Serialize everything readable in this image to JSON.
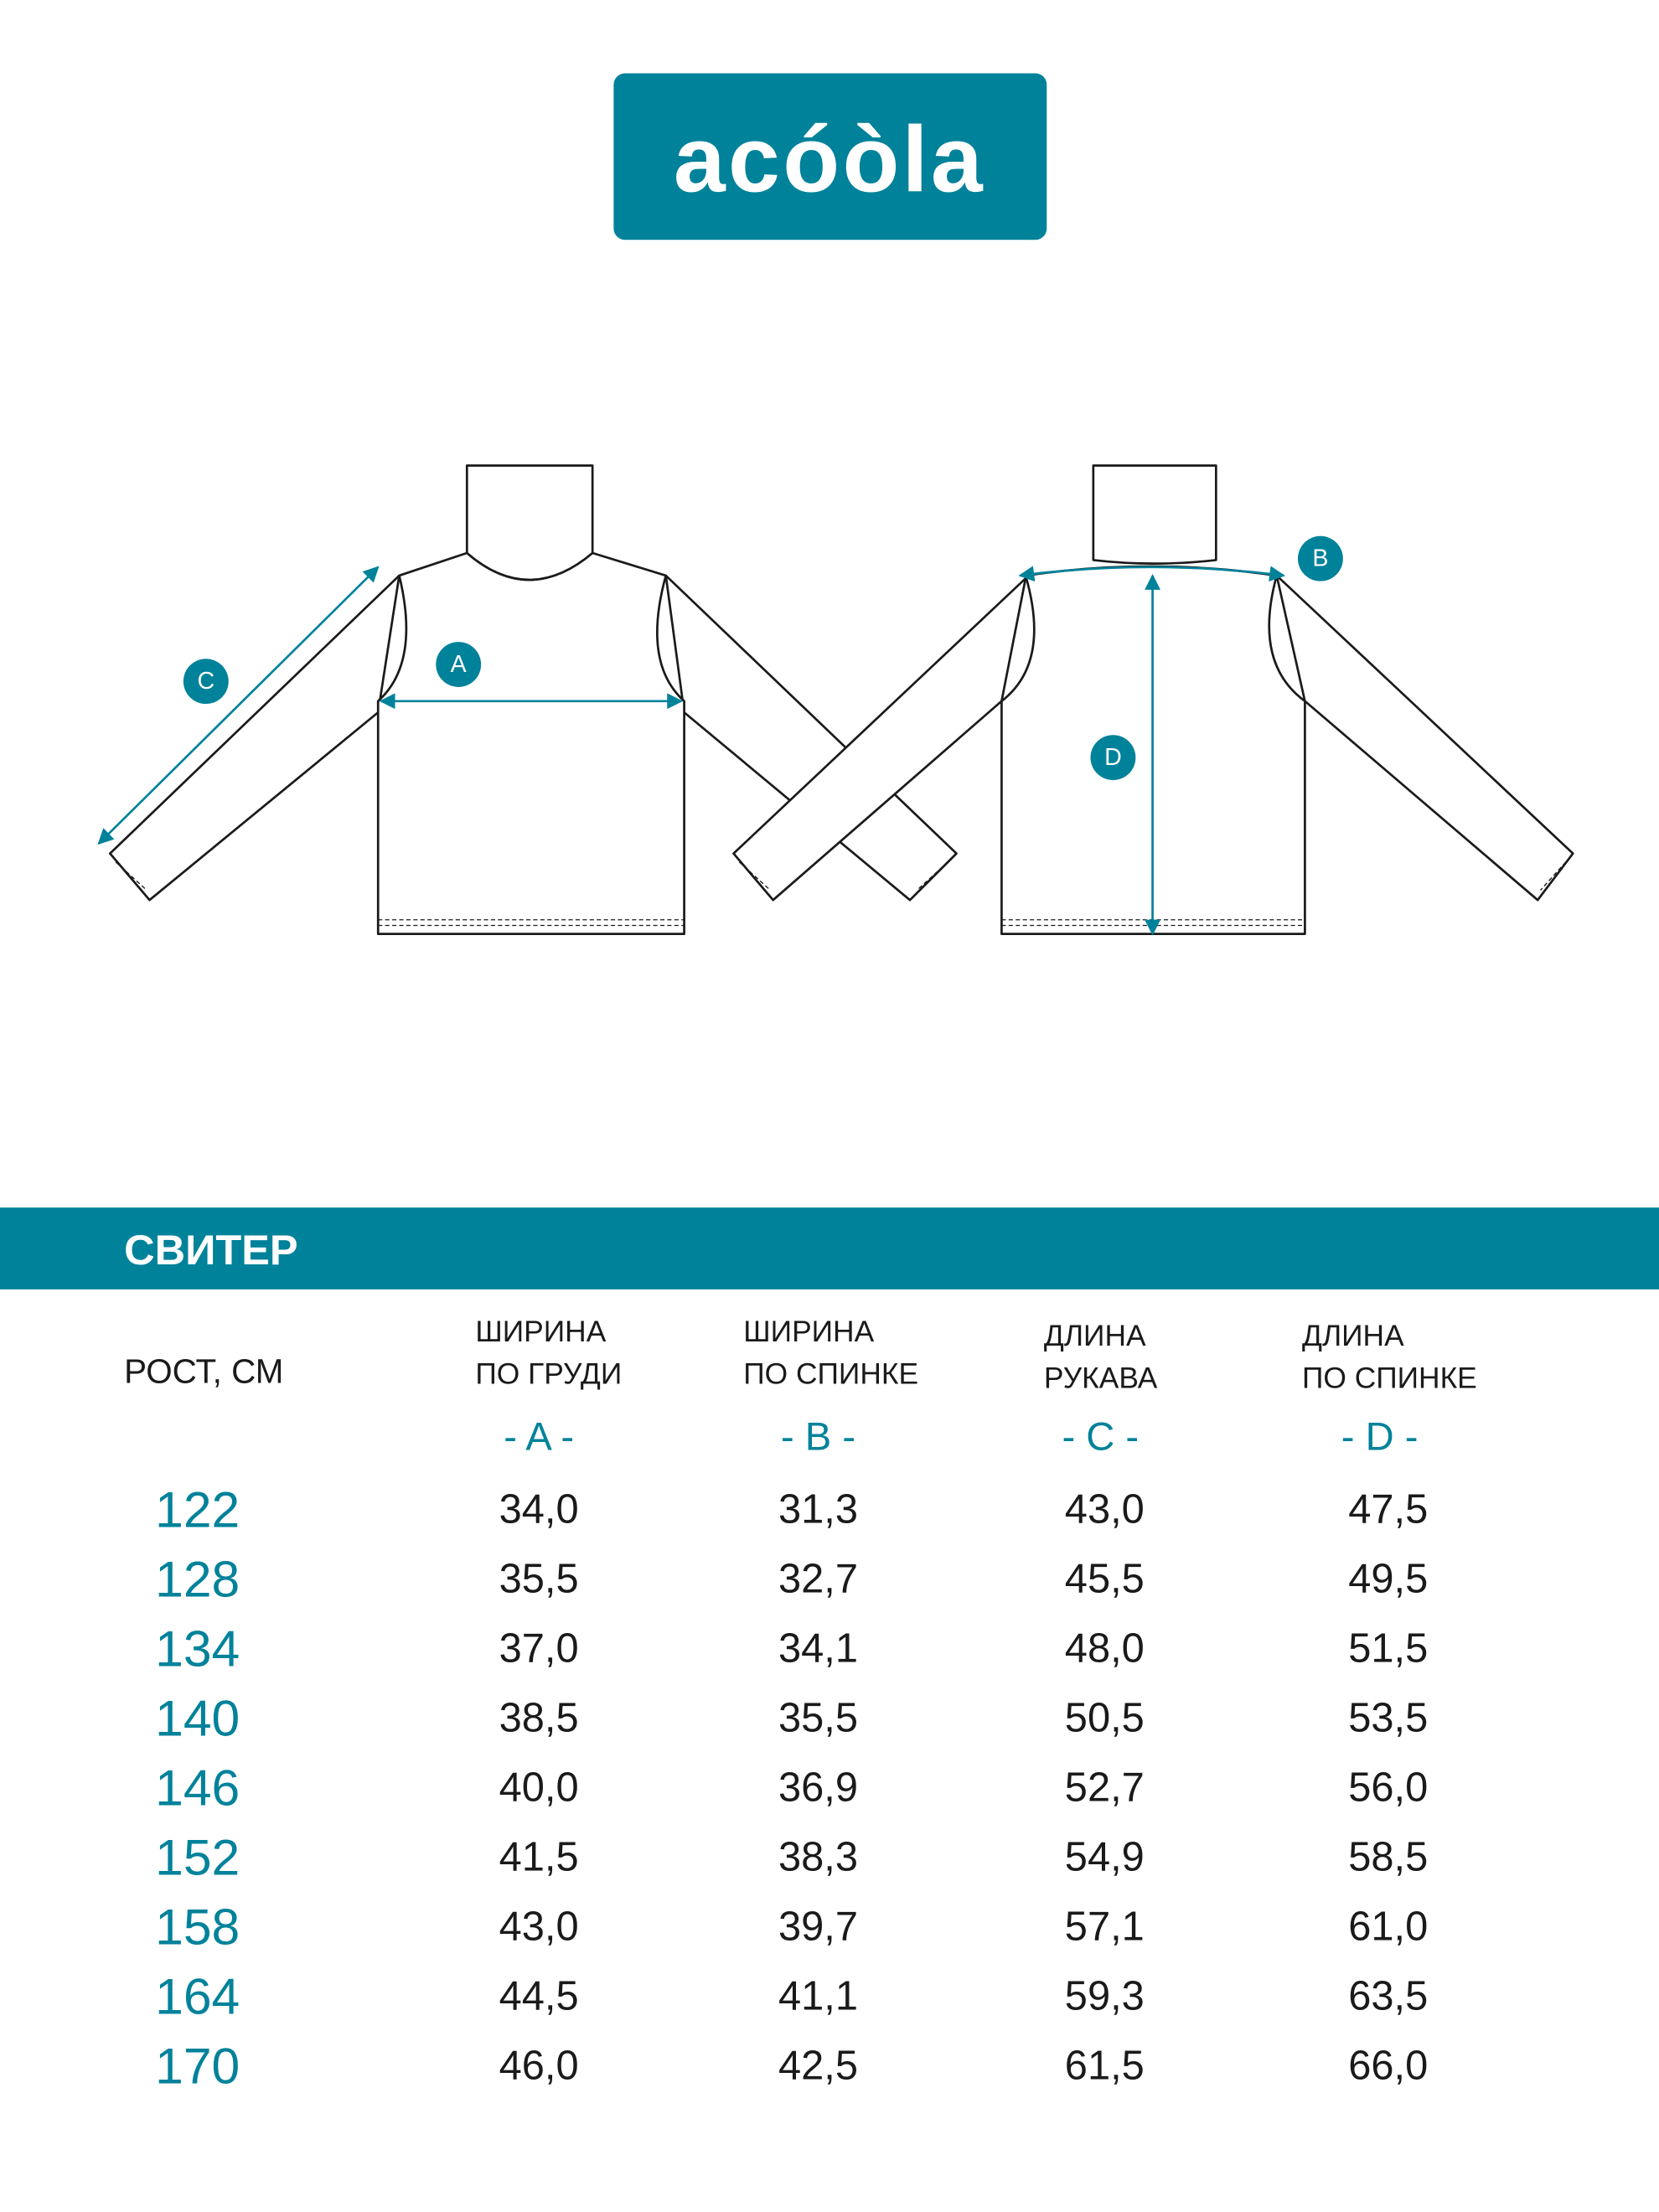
{
  "logo": {
    "text": "acóòla"
  },
  "diagram": {
    "labels": {
      "a": "A",
      "b": "B",
      "c": "C",
      "d": "D"
    }
  },
  "table": {
    "title": "СВИТЕР",
    "height_header": "РОСТ, СМ",
    "columns": [
      {
        "lines": [
          "ШИРИНА",
          "ПО ГРУДИ"
        ],
        "letter": "- A -"
      },
      {
        "lines": [
          "ШИРИНА",
          "ПО СПИНКЕ"
        ],
        "letter": "- B -"
      },
      {
        "lines": [
          "ДЛИНА",
          "РУКАВА"
        ],
        "letter": "- C -"
      },
      {
        "lines": [
          "ДЛИНА",
          "ПО СПИНКЕ"
        ],
        "letter": "- D -"
      }
    ],
    "rows": [
      [
        "122",
        "34,0",
        "31,3",
        "43,0",
        "47,5"
      ],
      [
        "128",
        "35,5",
        "32,7",
        "45,5",
        "49,5"
      ],
      [
        "134",
        "37,0",
        "34,1",
        "48,0",
        "51,5"
      ],
      [
        "140",
        "38,5",
        "35,5",
        "50,5",
        "53,5"
      ],
      [
        "146",
        "40,0",
        "36,9",
        "52,7",
        "56,0"
      ],
      [
        "152",
        "41,5",
        "38,3",
        "54,9",
        "58,5"
      ],
      [
        "158",
        "43,0",
        "39,7",
        "57,1",
        "61,0"
      ],
      [
        "164",
        "44,5",
        "41,1",
        "59,3",
        "63,5"
      ],
      [
        "170",
        "46,0",
        "42,5",
        "61,5",
        "66,0"
      ]
    ]
  }
}
